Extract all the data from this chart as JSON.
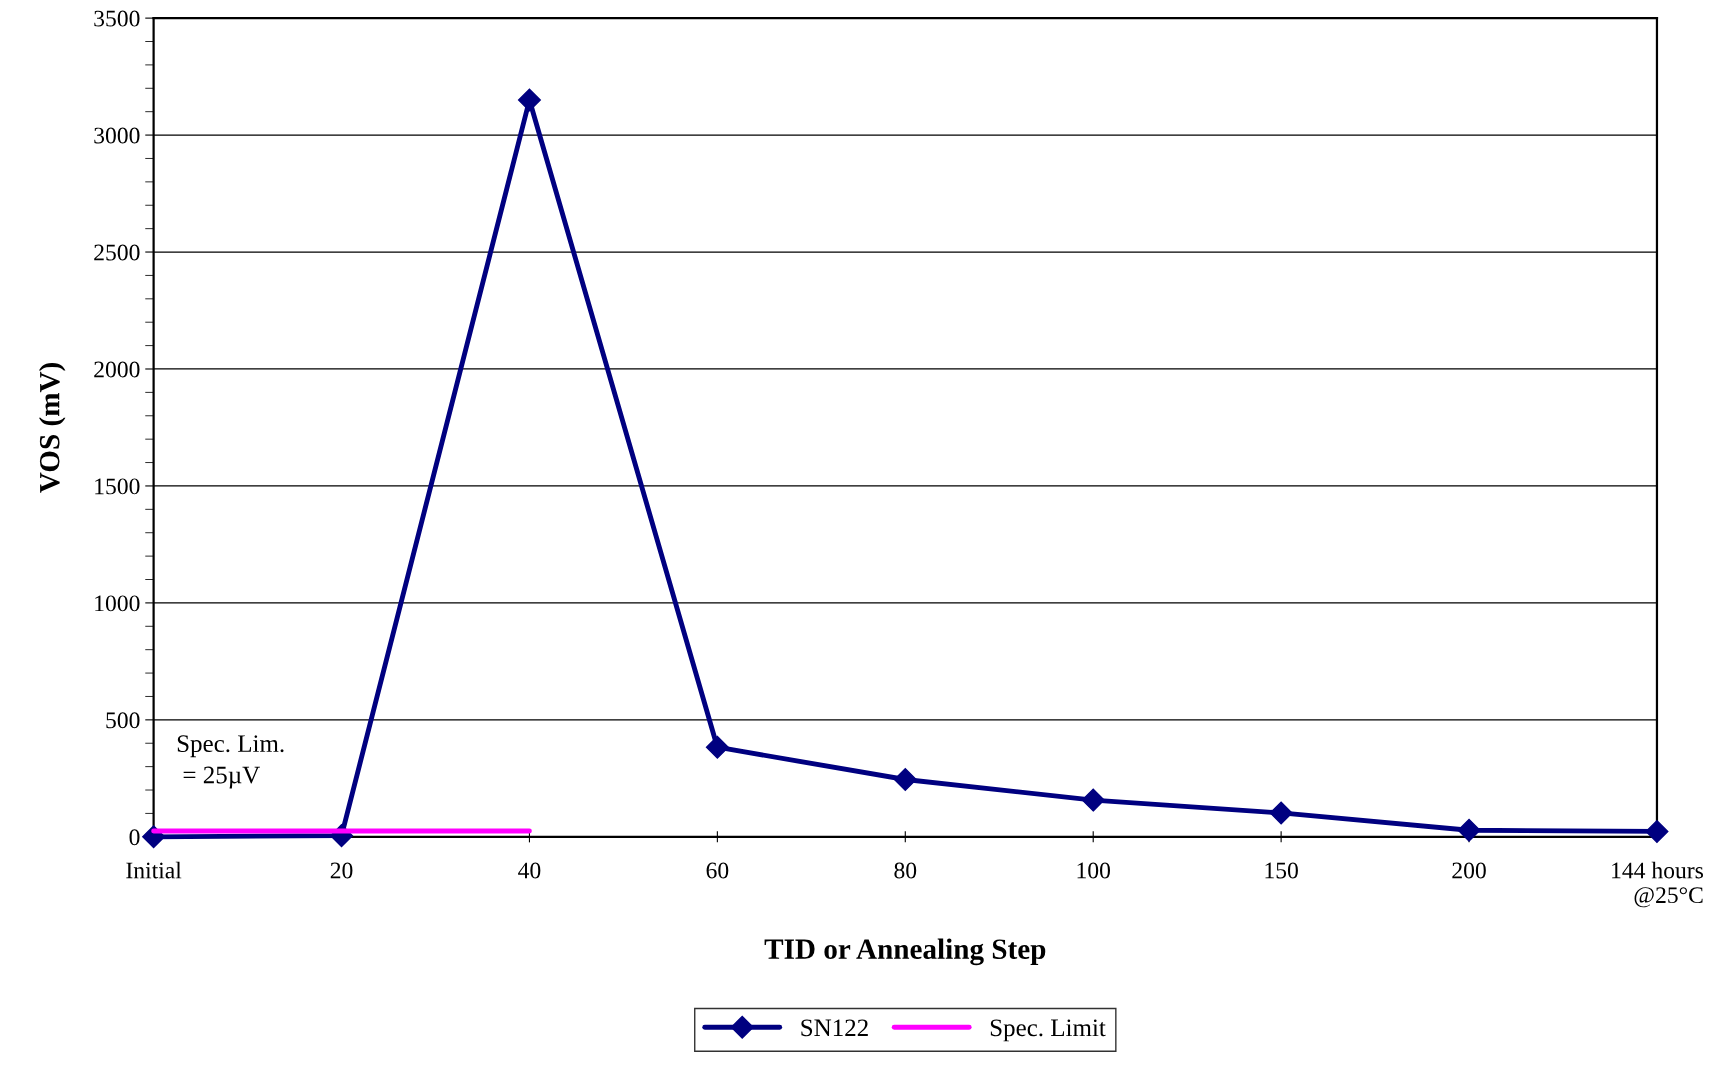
{
  "chart_data": {
    "type": "line",
    "xlabel": "TID or Annealing Step",
    "ylabel": "VOS (mV)",
    "categories": [
      "Initial",
      "20",
      "40",
      "60",
      "80",
      "100",
      "150",
      "200",
      "144 hours\n@25°C"
    ],
    "series": [
      {
        "name": "SN122",
        "color": "#000080",
        "values": [
          0,
          5,
          3150,
          383,
          245,
          157,
          102,
          28,
          23
        ],
        "marker": "diamond"
      },
      {
        "name": "Spec. Limit",
        "color": "#ff00ff",
        "values": [
          25,
          25,
          25,
          null,
          null,
          null,
          null,
          null,
          null
        ],
        "marker": "none"
      }
    ],
    "ylim": [
      0,
      3500
    ],
    "yticks": [
      0,
      500,
      1000,
      1500,
      2000,
      2500,
      3000,
      3500
    ],
    "grid": "y",
    "legend": "bottom",
    "line_style": "solid",
    "annotations": [
      "Spec. Lim.\n = 25µV"
    ]
  }
}
